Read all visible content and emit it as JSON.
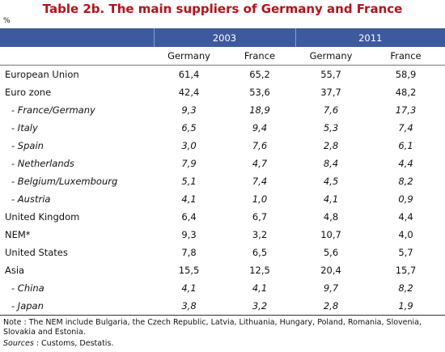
{
  "title": "Table 2b. The main suppliers of Germany and France",
  "unit": "%",
  "table": {
    "header": {
      "years": [
        "2003",
        "2011"
      ],
      "countries": [
        "Germany",
        "France",
        "Germany",
        "France"
      ]
    },
    "rows": [
      {
        "label": "European Union",
        "values": [
          "61,4",
          "65,2",
          "55,7",
          "58,9"
        ]
      },
      {
        "label": "Euro zone",
        "values": [
          "42,4",
          "53,6",
          "37,7",
          "48,2"
        ]
      },
      {
        "label": "- France/Germany",
        "values": [
          "9,3",
          "18,9",
          "7,6",
          "17,3"
        ]
      },
      {
        "label": "- Italy",
        "values": [
          "6,5",
          "9,4",
          "5,3",
          "7,4"
        ]
      },
      {
        "label": "- Spain",
        "values": [
          "3,0",
          "7,6",
          "2,8",
          "6,1"
        ]
      },
      {
        "label": "- Netherlands",
        "values": [
          "7,9",
          "4,7",
          "8,4",
          "4,4"
        ]
      },
      {
        "label": "- Belgium/Luxembourg",
        "values": [
          "5,1",
          "7,4",
          "4,5",
          "8,2"
        ]
      },
      {
        "label": "- Austria",
        "values": [
          "4,1",
          "1,0",
          "4,1",
          "0,9"
        ]
      },
      {
        "label": "United Kingdom",
        "values": [
          "6,4",
          "6,7",
          "4,8",
          "4,4"
        ]
      },
      {
        "label": "NEM*",
        "values": [
          "9,3",
          "3,2",
          "10,7",
          "4,0"
        ]
      },
      {
        "label": "United States",
        "values": [
          "7,8",
          "6,5",
          "5,6",
          "5,7"
        ]
      },
      {
        "label": "Asia",
        "values": [
          "15,5",
          "12,5",
          "20,4",
          "15,7"
        ]
      },
      {
        "label": "- China",
        "values": [
          "4,1",
          "4,1",
          "9,7",
          "8,2"
        ]
      },
      {
        "label": "- Japan",
        "values": [
          "3,8",
          "3,2",
          "2,8",
          "1,9"
        ]
      }
    ]
  },
  "note": "Note : The NEM include Bulgaria, the Czech Republic, Latvia, Lithuania, Hungary, Poland, Romania, Slovenia, Slovakia and Estonia.",
  "sources": {
    "label": "Sources",
    "text": " : Customs, Destatis."
  }
}
